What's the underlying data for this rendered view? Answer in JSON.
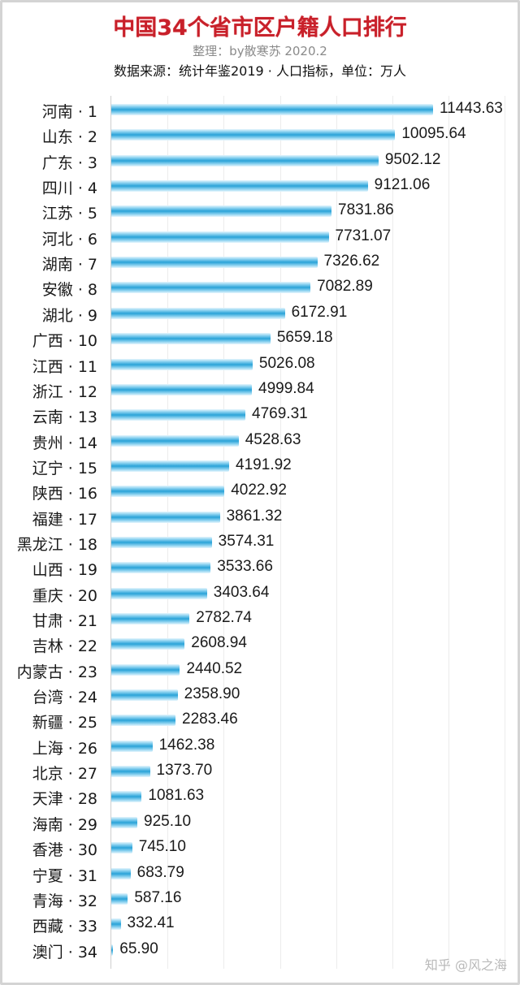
{
  "header": {
    "title": "中国34个省市区户籍人口排行",
    "subtitle": "整理：by散寒苏 2020.2",
    "source": "数据来源：统计年鉴2019 · 人口指标，单位：万人"
  },
  "watermark": "知乎 @风之海",
  "colors": {
    "title": "#c8202a",
    "bar": "#2aa3d8",
    "gridline": "#ececec"
  },
  "chart_data": {
    "type": "bar",
    "orientation": "horizontal",
    "title": "中国34个省市区户籍人口排行",
    "subtitle": "整理：by散寒苏 2020.2",
    "annotation": "数据来源：统计年鉴2019 · 人口指标，单位：万人",
    "xlabel": "",
    "ylabel": "",
    "unit": "万人",
    "xlim": [
      0,
      14000
    ],
    "grid": true,
    "legend": null,
    "categories": [
      "河南 · 1",
      "山东 · 2",
      "广东 · 3",
      "四川 · 4",
      "江苏 · 5",
      "河北 · 6",
      "湖南 · 7",
      "安徽 · 8",
      "湖北 · 9",
      "广西 · 10",
      "江西 · 11",
      "浙江 · 12",
      "云南 · 13",
      "贵州 · 14",
      "辽宁 · 15",
      "陕西 · 16",
      "福建 · 17",
      "黑龙江 · 18",
      "山西 · 19",
      "重庆 · 20",
      "甘肃 · 21",
      "吉林 · 22",
      "内蒙古 · 23",
      "台湾 · 24",
      "新疆 · 25",
      "上海 · 26",
      "北京 · 27",
      "天津 · 28",
      "海南 · 29",
      "香港 · 30",
      "宁夏 · 31",
      "青海 · 32",
      "西藏 · 33",
      "澳门 · 34"
    ],
    "values": [
      11443.63,
      10095.64,
      9502.12,
      9121.06,
      7831.86,
      7731.07,
      7326.62,
      7082.89,
      6172.91,
      5659.18,
      5026.08,
      4999.84,
      4769.31,
      4528.63,
      4191.92,
      4022.92,
      3861.32,
      3574.31,
      3533.66,
      3403.64,
      2782.74,
      2608.94,
      2440.52,
      2358.9,
      2283.46,
      1462.38,
      1373.7,
      1081.63,
      925.1,
      745.1,
      683.79,
      587.16,
      332.41,
      65.9
    ],
    "value_labels": [
      "11443.63",
      "10095.64",
      "9502.12",
      "9121.06",
      "7831.86",
      "7731.07",
      "7326.62",
      "7082.89",
      "6172.91",
      "5659.18",
      "5026.08",
      "4999.84",
      "4769.31",
      "4528.63",
      "4191.92",
      "4022.92",
      "3861.32",
      "3574.31",
      "3533.66",
      "3403.64",
      "2782.74",
      "2608.94",
      "2440.52",
      "2358.90",
      "2283.46",
      "1462.38",
      "1373.70",
      "1081.63",
      "925.10",
      "745.10",
      "683.79",
      "587.16",
      "332.41",
      "65.90"
    ]
  }
}
